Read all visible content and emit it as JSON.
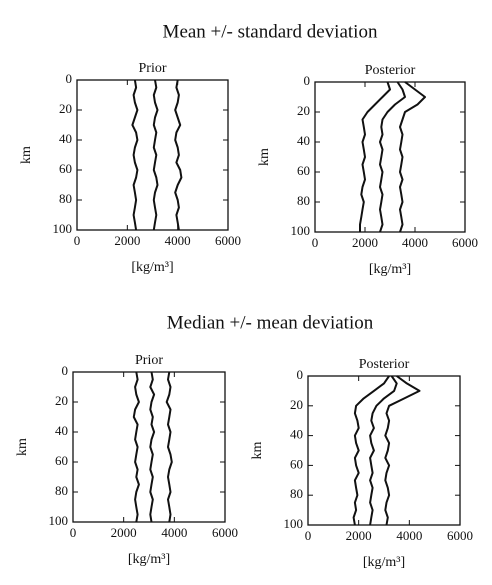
{
  "headings": [
    "Mean +/- standard deviation",
    "Median +/- mean deviation"
  ],
  "chart_data": [
    {
      "type": "line",
      "title": "Prior",
      "x_label": "[kg/m³]",
      "y_label": "km",
      "xlim": [
        0,
        6000
      ],
      "xticks": [
        0,
        2000,
        4000,
        6000
      ],
      "ylim": [
        0,
        100
      ],
      "yticks": [
        0,
        20,
        40,
        60,
        80,
        100
      ],
      "y_inverted": true,
      "color": "#111111",
      "y": [
        0,
        5,
        10,
        15,
        20,
        25,
        30,
        35,
        40,
        45,
        50,
        55,
        60,
        65,
        70,
        75,
        80,
        85,
        90,
        95,
        100
      ],
      "series": [
        {
          "values": [
            2300,
            2350,
            2250,
            2300,
            2400,
            2300,
            2200,
            2350,
            2400,
            2300,
            2250,
            2300,
            2400,
            2350,
            2250,
            2300,
            2350,
            2300,
            2250,
            2300,
            2350
          ]
        },
        {
          "values": [
            3100,
            3150,
            3050,
            3100,
            3200,
            3100,
            3050,
            3150,
            3100,
            3050,
            3150,
            3100,
            3050,
            3150,
            3200,
            3100,
            3050,
            3100,
            3150,
            3100,
            3050
          ]
        },
        {
          "values": [
            4000,
            3950,
            4050,
            4000,
            3900,
            4000,
            4100,
            3950,
            3900,
            4000,
            4050,
            3950,
            4100,
            4150,
            4000,
            3900,
            4000,
            4050,
            3950,
            4000,
            4050
          ]
        }
      ]
    },
    {
      "type": "line",
      "title": "Posterior",
      "x_label": "[kg/m³]",
      "y_label": "km",
      "xlim": [
        0,
        6000
      ],
      "xticks": [
        0,
        2000,
        4000,
        6000
      ],
      "ylim": [
        0,
        100
      ],
      "yticks": [
        0,
        20,
        40,
        60,
        80,
        100
      ],
      "y_inverted": true,
      "color": "#111111",
      "y": [
        0,
        5,
        10,
        15,
        20,
        25,
        30,
        35,
        40,
        45,
        50,
        55,
        60,
        65,
        70,
        75,
        80,
        85,
        90,
        95,
        100
      ],
      "series": [
        {
          "values": [
            2900,
            3000,
            2700,
            2400,
            2100,
            1900,
            1950,
            2000,
            1900,
            1950,
            2000,
            1900,
            1950,
            2000,
            1900,
            1850,
            1950,
            1900,
            1850,
            1800,
            1800
          ]
        },
        {
          "values": [
            3300,
            3500,
            3600,
            3200,
            2900,
            2700,
            2650,
            2700,
            2600,
            2700,
            2650,
            2600,
            2700,
            2650,
            2600,
            2700,
            2650,
            2600,
            2650,
            2700,
            2600
          ]
        },
        {
          "values": [
            3600,
            4000,
            4400,
            4100,
            3600,
            3500,
            3400,
            3500,
            3450,
            3400,
            3500,
            3450,
            3400,
            3500,
            3400,
            3450,
            3500,
            3400,
            3450,
            3500,
            3400
          ]
        }
      ]
    },
    {
      "type": "line",
      "title": "Prior",
      "x_label": "[kg/m³]",
      "y_label": "km",
      "xlim": [
        0,
        6000
      ],
      "xticks": [
        0,
        2000,
        4000,
        6000
      ],
      "ylim": [
        0,
        100
      ],
      "yticks": [
        0,
        20,
        40,
        60,
        80,
        100
      ],
      "y_inverted": true,
      "color": "#111111",
      "y": [
        0,
        5,
        10,
        15,
        20,
        25,
        30,
        35,
        40,
        45,
        50,
        55,
        60,
        65,
        70,
        75,
        80,
        85,
        90,
        95,
        100
      ],
      "series": [
        {
          "values": [
            2500,
            2550,
            2450,
            2500,
            2600,
            2450,
            2400,
            2550,
            2500,
            2450,
            2550,
            2500,
            2450,
            2550,
            2500,
            2600,
            2500,
            2450,
            2500,
            2550,
            2500
          ]
        },
        {
          "values": [
            3100,
            3150,
            3050,
            3200,
            3100,
            3050,
            3150,
            3100,
            3200,
            3100,
            3050,
            3150,
            3100,
            3050,
            3150,
            3100,
            3050,
            3150,
            3100,
            3050,
            3100
          ]
        },
        {
          "values": [
            3800,
            3750,
            3850,
            3800,
            3700,
            3850,
            3800,
            3750,
            3850,
            3800,
            3750,
            3850,
            3900,
            3800,
            3750,
            3800,
            3850,
            3750,
            3800,
            3850,
            3800
          ]
        }
      ]
    },
    {
      "type": "line",
      "title": "Posterior",
      "x_label": "[kg/m³]",
      "y_label": "km",
      "xlim": [
        0,
        6000
      ],
      "xticks": [
        0,
        2000,
        4000,
        6000
      ],
      "ylim": [
        0,
        100
      ],
      "yticks": [
        0,
        20,
        40,
        60,
        80,
        100
      ],
      "y_inverted": true,
      "color": "#111111",
      "y": [
        0,
        5,
        10,
        15,
        20,
        25,
        30,
        35,
        40,
        45,
        50,
        55,
        60,
        65,
        70,
        75,
        80,
        85,
        90,
        95,
        100
      ],
      "series": [
        {
          "values": [
            3200,
            3000,
            2600,
            2200,
            1900,
            1850,
            1950,
            2000,
            1850,
            1900,
            2000,
            1850,
            1900,
            2000,
            1850,
            1900,
            1950,
            1850,
            1900,
            1800,
            1850
          ]
        },
        {
          "values": [
            3300,
            3500,
            3400,
            3000,
            2700,
            2550,
            2500,
            2600,
            2450,
            2500,
            2600,
            2450,
            2500,
            2550,
            2450,
            2550,
            2500,
            2450,
            2550,
            2500,
            2450
          ]
        },
        {
          "values": [
            3500,
            3900,
            4400,
            3800,
            3200,
            3100,
            3200,
            3150,
            3050,
            3200,
            3150,
            3050,
            3200,
            3100,
            3050,
            3150,
            3200,
            3100,
            3050,
            3150,
            3100
          ]
        }
      ]
    }
  ]
}
